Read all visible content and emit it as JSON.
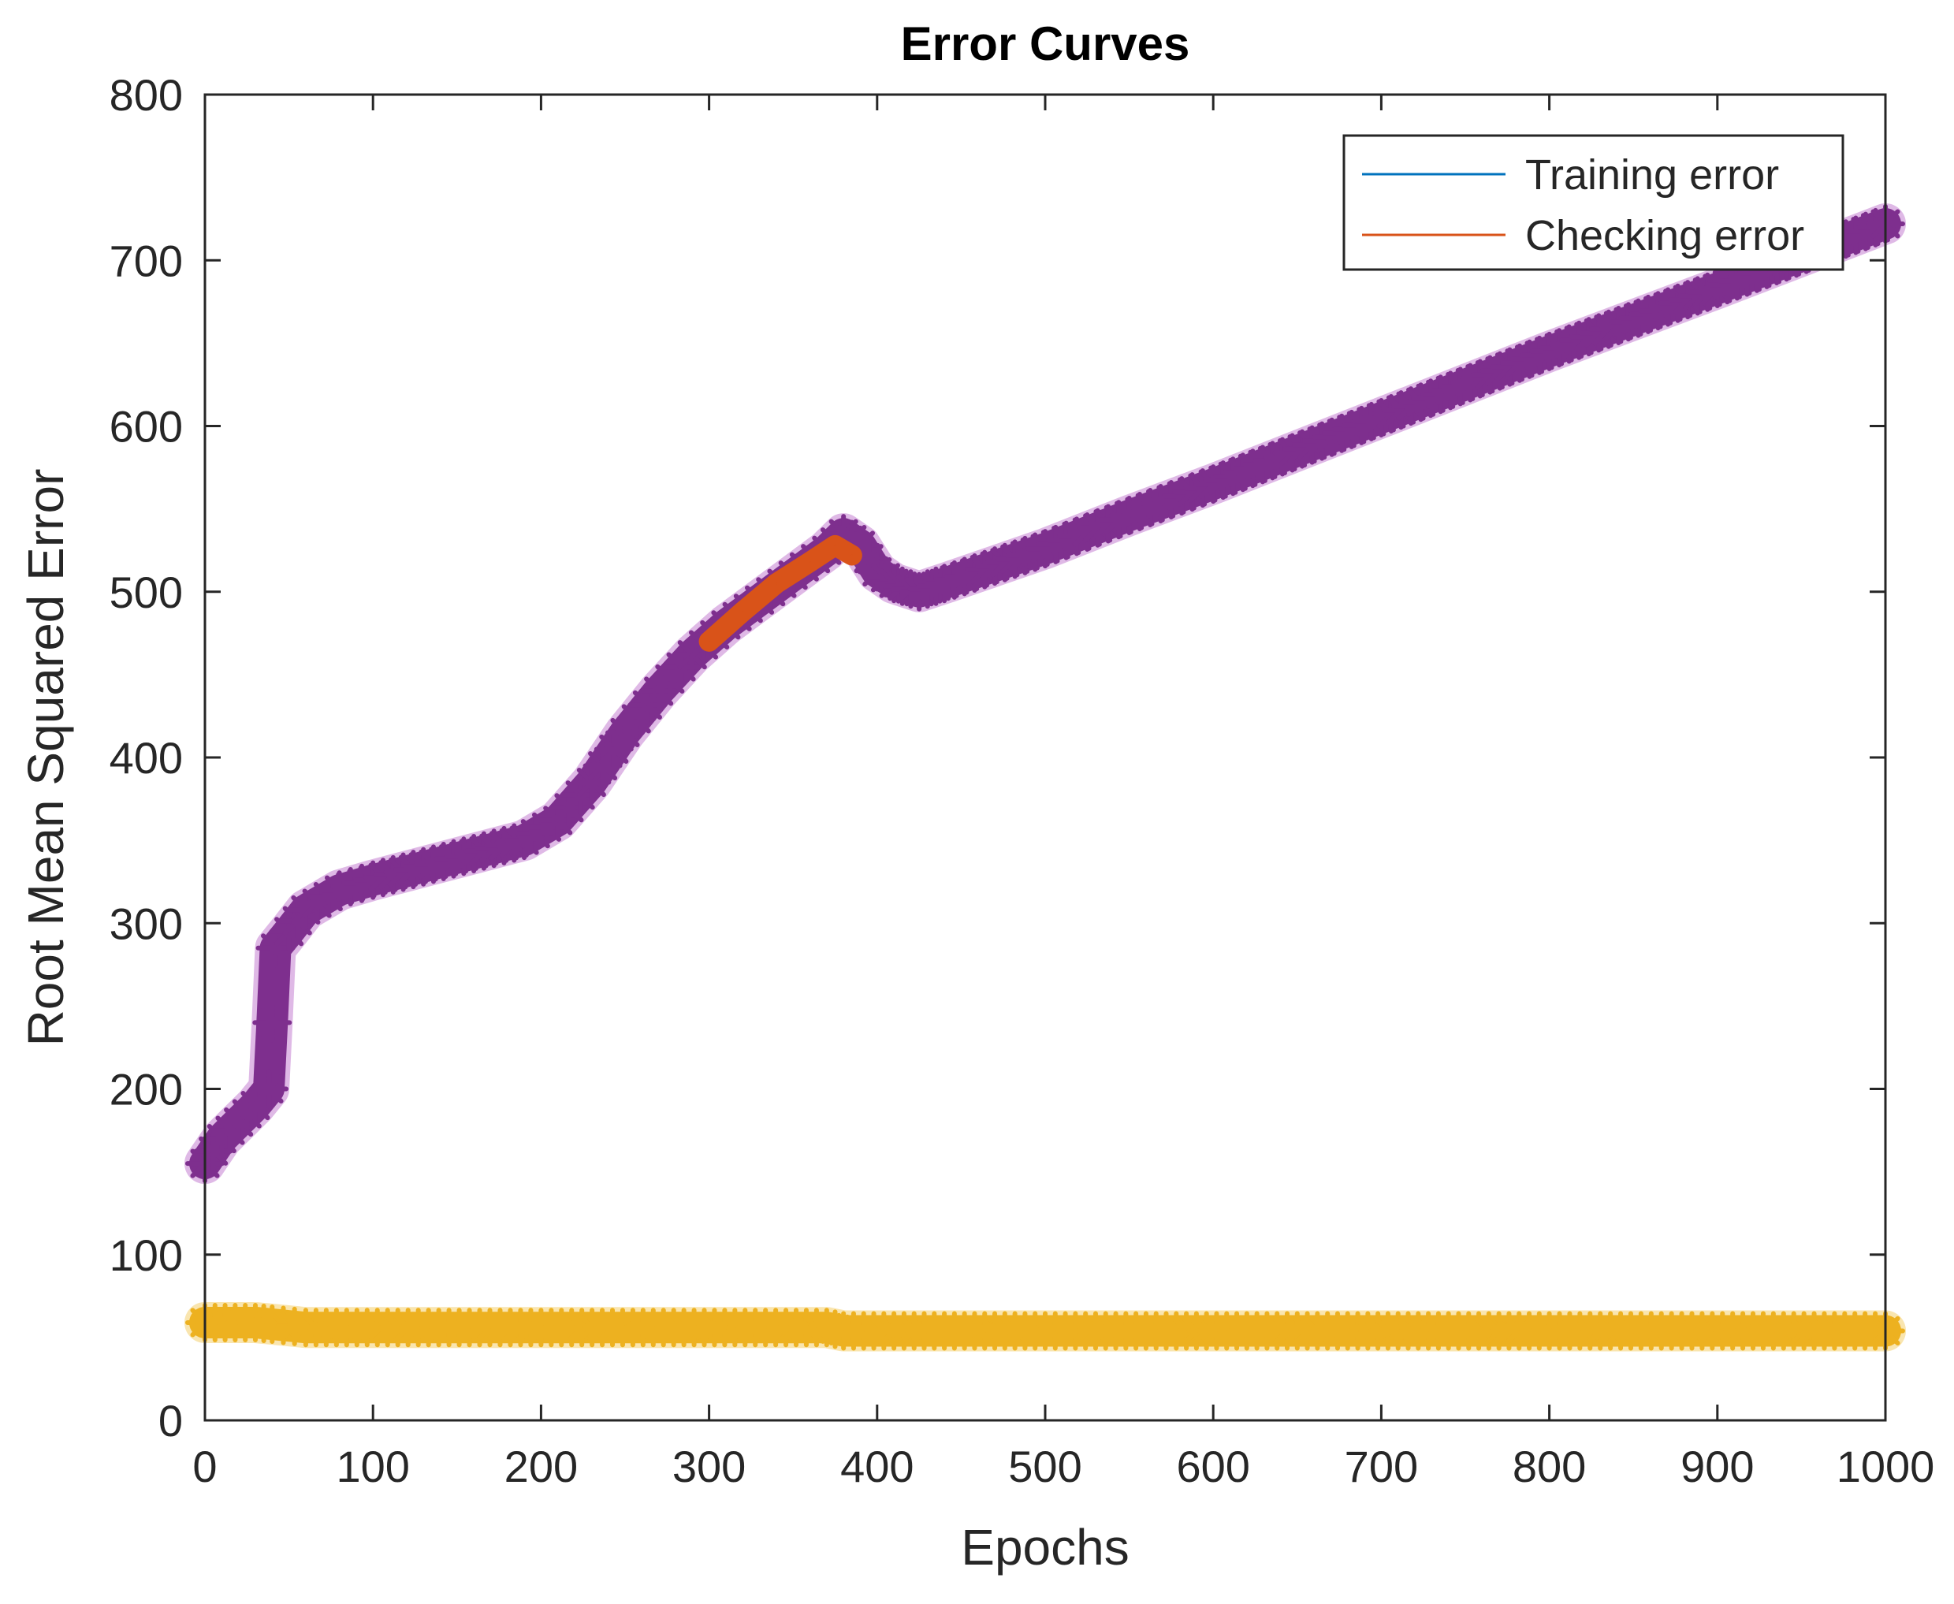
{
  "chart_data": {
    "type": "line",
    "title": "Error Curves",
    "xlabel": "Epochs",
    "ylabel": "Root Mean Squared Error",
    "xlim": [
      0,
      1000
    ],
    "ylim": [
      0,
      800
    ],
    "xticks": [
      0,
      100,
      200,
      300,
      400,
      500,
      600,
      700,
      800,
      900,
      1000
    ],
    "yticks": [
      0,
      100,
      200,
      300,
      400,
      500,
      600,
      700,
      800
    ],
    "xtick_labels": [
      "0",
      "100",
      "200",
      "300",
      "400",
      "500",
      "600",
      "700",
      "800",
      "900",
      "1000"
    ],
    "ytick_labels": [
      "0",
      "100",
      "200",
      "300",
      "400",
      "500",
      "600",
      "700",
      "800"
    ],
    "grid": false,
    "legend": {
      "location": "top-right",
      "entries": [
        {
          "label": "Training error",
          "color": "#0072BD"
        },
        {
          "label": "Checking error",
          "color": "#D95319"
        }
      ]
    },
    "series": [
      {
        "name": "Training error",
        "color": "#0072BD",
        "x": [
          0,
          500,
          1000
        ],
        "y": [
          null,
          null,
          null
        ]
      },
      {
        "name": "Checking error",
        "color": "#D95319",
        "x": [
          300,
          320,
          340,
          360,
          375,
          385
        ],
        "y": [
          470,
          488,
          505,
          518,
          528,
          522
        ]
      },
      {
        "name": "",
        "color": "#7E2F8E",
        "marker": "*",
        "x": [
          0,
          10,
          20,
          30,
          38,
          40,
          42,
          50,
          60,
          80,
          100,
          130,
          160,
          190,
          210,
          230,
          250,
          270,
          290,
          310,
          330,
          350,
          370,
          380,
          390,
          400,
          410,
          425,
          440,
          500,
          550,
          600,
          700,
          800,
          900,
          1000
        ],
        "y": [
          155,
          170,
          180,
          190,
          200,
          240,
          285,
          295,
          308,
          320,
          326,
          334,
          342,
          350,
          362,
          385,
          415,
          440,
          462,
          480,
          495,
          510,
          525,
          535,
          528,
          512,
          505,
          500,
          505,
          526,
          546,
          565,
          605,
          645,
          683,
          722
        ]
      },
      {
        "name": "",
        "color": "#EDB120",
        "marker": "*",
        "x": [
          0,
          30,
          40,
          60,
          200,
          370,
          380,
          500,
          800,
          1000
        ],
        "y": [
          59,
          59,
          58,
          56,
          56,
          56,
          54,
          54,
          54,
          54
        ]
      }
    ]
  }
}
